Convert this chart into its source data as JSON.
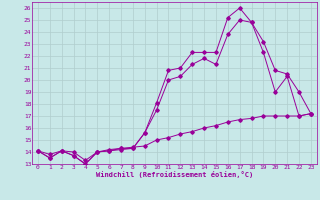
{
  "xlabel": "Windchill (Refroidissement éolien,°C)",
  "ylabel": "",
  "bg_color": "#c8e8e8",
  "grid_color": "#b0cece",
  "line_color": "#990099",
  "xlim": [
    -0.5,
    23.5
  ],
  "ylim": [
    13,
    26.5
  ],
  "xticks": [
    0,
    1,
    2,
    3,
    4,
    5,
    6,
    7,
    8,
    9,
    10,
    11,
    12,
    13,
    14,
    15,
    16,
    17,
    18,
    19,
    20,
    21,
    22,
    23
  ],
  "yticks": [
    13,
    14,
    15,
    16,
    17,
    18,
    19,
    20,
    21,
    22,
    23,
    24,
    25,
    26
  ],
  "line1_x": [
    0,
    1,
    2,
    3,
    4,
    5,
    6,
    7,
    8,
    9,
    10,
    11,
    12,
    13,
    14,
    15,
    16,
    17,
    18,
    19,
    20,
    21,
    22,
    23
  ],
  "line1_y": [
    14.1,
    13.5,
    14.1,
    13.7,
    13.0,
    14.0,
    14.1,
    14.2,
    14.3,
    15.6,
    18.1,
    20.8,
    21.0,
    22.3,
    22.3,
    22.3,
    25.2,
    26.0,
    24.8,
    23.2,
    20.8,
    20.5,
    19.0,
    17.2
  ],
  "line2_x": [
    0,
    1,
    2,
    3,
    4,
    5,
    6,
    7,
    8,
    9,
    10,
    11,
    12,
    13,
    14,
    15,
    16,
    17,
    18,
    19,
    20,
    21,
    22,
    23
  ],
  "line2_y": [
    14.1,
    13.5,
    14.1,
    13.7,
    13.0,
    14.0,
    14.1,
    14.3,
    14.3,
    15.6,
    17.5,
    20.0,
    20.3,
    21.3,
    21.8,
    21.3,
    23.8,
    25.0,
    24.8,
    22.3,
    19.0,
    20.3,
    17.0,
    17.2
  ],
  "line3_x": [
    0,
    1,
    2,
    3,
    4,
    5,
    6,
    7,
    8,
    9,
    10,
    11,
    12,
    13,
    14,
    15,
    16,
    17,
    18,
    19,
    20,
    21,
    22,
    23
  ],
  "line3_y": [
    14.1,
    13.8,
    14.1,
    14.0,
    13.3,
    14.0,
    14.2,
    14.3,
    14.4,
    14.5,
    15.0,
    15.2,
    15.5,
    15.7,
    16.0,
    16.2,
    16.5,
    16.7,
    16.8,
    17.0,
    17.0,
    17.0,
    17.0,
    17.2
  ]
}
